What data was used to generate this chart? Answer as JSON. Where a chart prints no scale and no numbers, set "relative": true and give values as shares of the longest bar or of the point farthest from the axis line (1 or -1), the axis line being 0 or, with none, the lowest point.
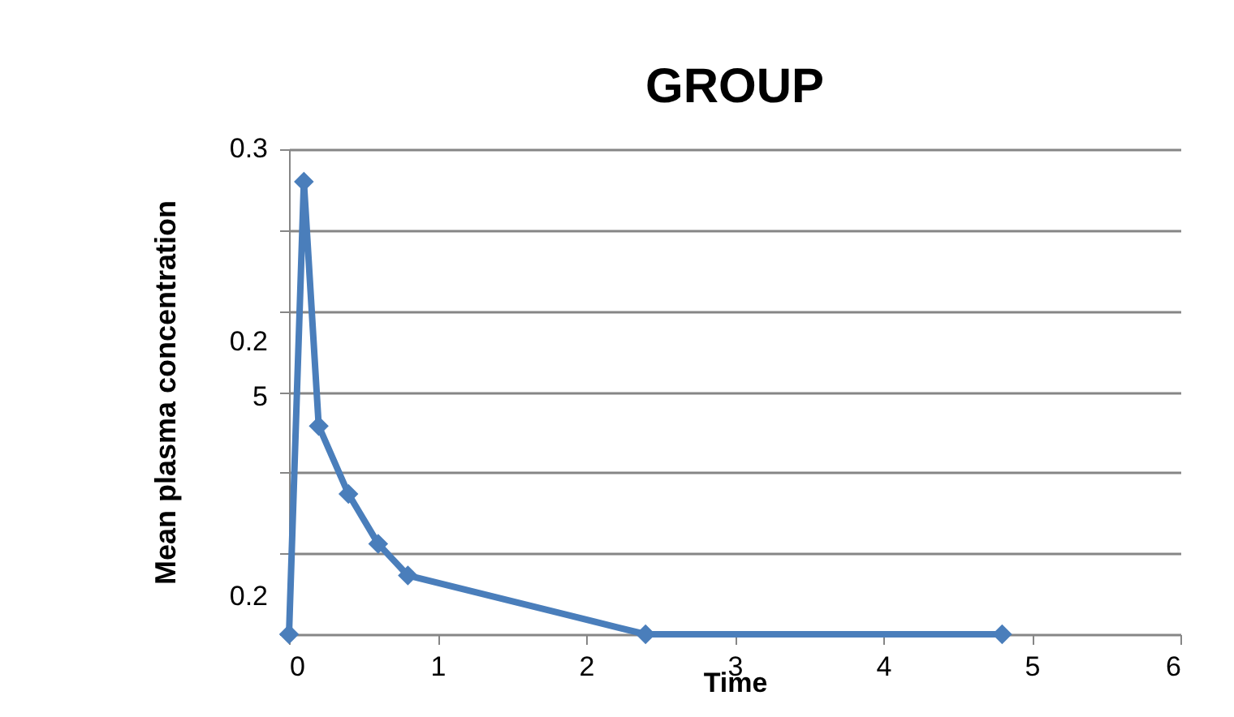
{
  "chart_data": {
    "type": "line",
    "title": "GROUP",
    "xlabel": "Time",
    "ylabel": "Mean plasma concentration",
    "annotations": [
      "0.3",
      "0.2",
      "5",
      "0.2"
    ],
    "x": [
      0,
      0.1,
      0.2,
      0.4,
      0.6,
      0.8,
      2.4,
      4.8
    ],
    "series": [
      {
        "color": "#4a7ebb",
        "values": [
          0,
          1,
          0.46,
          0.31,
          0.2,
          0.13,
          0,
          0
        ]
      }
    ],
    "relative": true,
    "xlim": [
      0,
      6
    ],
    "xticks": [
      0,
      1,
      2,
      3,
      4,
      5,
      6
    ],
    "grid": "y",
    "marker": "diamond",
    "line_style": "solid"
  }
}
